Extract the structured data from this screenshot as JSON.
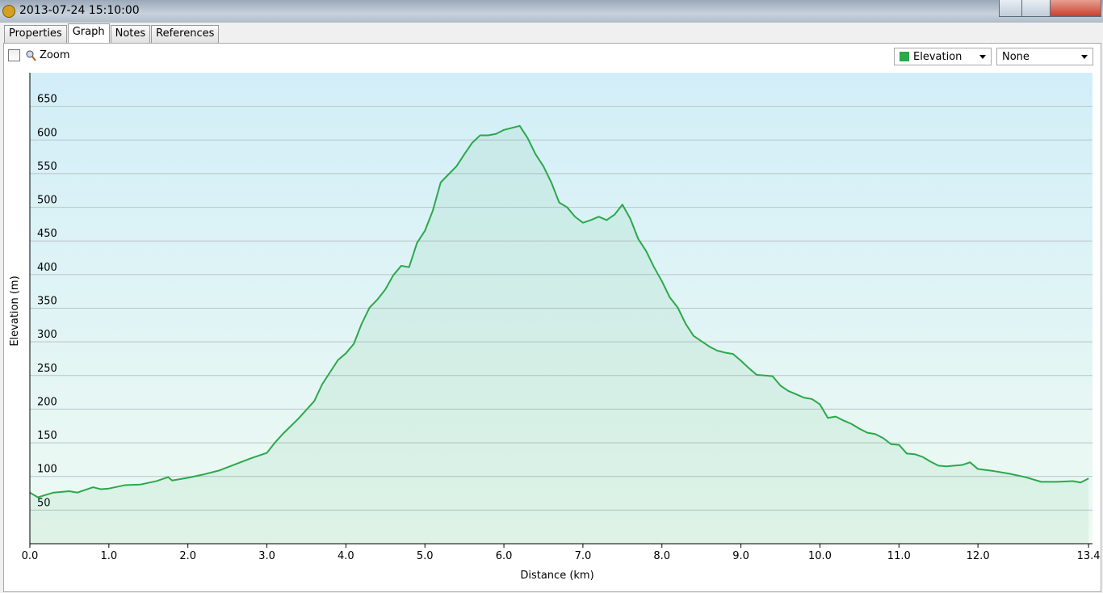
{
  "window": {
    "title": "2013-07-24 15:10:00"
  },
  "tabs": [
    "Properties",
    "Graph",
    "Notes",
    "References"
  ],
  "toolbar": {
    "zoom": "Zoom",
    "x_select": "None"
  },
  "chart_data": {
    "type": "line",
    "x_label": "Distance (km)",
    "y_label": "Elevation (m)",
    "x": [
      0,
      0.1,
      0.3,
      0.5,
      0.6,
      0.8,
      0.9,
      1.0,
      1.2,
      1.4,
      1.6,
      1.75,
      1.8,
      2.0,
      2.2,
      2.4,
      2.6,
      2.8,
      3.0,
      3.1,
      3.2,
      3.4,
      3.6,
      3.7,
      3.8,
      3.9,
      4.0,
      4.1,
      4.2,
      4.3,
      4.4,
      4.5,
      4.6,
      4.7,
      4.8,
      4.9,
      5.0,
      5.1,
      5.2,
      5.3,
      5.4,
      5.5,
      5.6,
      5.7,
      5.8,
      5.9,
      6.0,
      6.1,
      6.2,
      6.3,
      6.4,
      6.5,
      6.6,
      6.7,
      6.8,
      6.9,
      7.0,
      7.1,
      7.2,
      7.3,
      7.4,
      7.5,
      7.6,
      7.7,
      7.8,
      7.9,
      8.0,
      8.1,
      8.2,
      8.3,
      8.4,
      8.5,
      8.6,
      8.7,
      8.8,
      8.9,
      9.0,
      9.1,
      9.2,
      9.3,
      9.4,
      9.5,
      9.6,
      9.7,
      9.8,
      9.9,
      10.0,
      10.1,
      10.2,
      10.3,
      10.4,
      10.5,
      10.6,
      10.7,
      10.8,
      10.9,
      11.0,
      11.1,
      11.2,
      11.3,
      11.4,
      11.5,
      11.6,
      11.7,
      11.8,
      11.9,
      12.0,
      12.2,
      12.4,
      12.6,
      12.8,
      13.0,
      13.2,
      13.3,
      13.4
    ],
    "series": [
      {
        "name": "Elevation",
        "color": "#2ba84a",
        "values": [
          76,
          69,
          76,
          78,
          76,
          84,
          81,
          82,
          87,
          88,
          93,
          99,
          94,
          98,
          103,
          109,
          118,
          127,
          135,
          150,
          163,
          186,
          212,
          237,
          255,
          273,
          283,
          297,
          327,
          351,
          363,
          378,
          399,
          413,
          411,
          447,
          465,
          495,
          537,
          549,
          561,
          579,
          596,
          607,
          607,
          609,
          615,
          618,
          621,
          603,
          579,
          561,
          537,
          507,
          500,
          486,
          477,
          481,
          486,
          481,
          489,
          504,
          483,
          453,
          435,
          411,
          390,
          366,
          351,
          327,
          309,
          301,
          293,
          287,
          284,
          282,
          272,
          261,
          251,
          250,
          249,
          235,
          227,
          222,
          217,
          215,
          207,
          187,
          189,
          183,
          178,
          171,
          165,
          163,
          157,
          148,
          147,
          134,
          133,
          129,
          122,
          116,
          115,
          116,
          117,
          121,
          111,
          108,
          104,
          99,
          92,
          92,
          93,
          91,
          97
        ]
      }
    ],
    "xlim": [
      0,
      13.45
    ],
    "ylim": [
      0,
      700
    ],
    "xticks": [
      {
        "value": 0,
        "label": "0.0"
      },
      {
        "value": 1,
        "label": "1.0"
      },
      {
        "value": 2,
        "label": "2.0"
      },
      {
        "value": 3,
        "label": "3.0"
      },
      {
        "value": 4,
        "label": "4.0"
      },
      {
        "value": 5,
        "label": "5.0"
      },
      {
        "value": 6,
        "label": "6.0"
      },
      {
        "value": 7,
        "label": "7.0"
      },
      {
        "value": 8,
        "label": "8.0"
      },
      {
        "value": 9,
        "label": "9.0"
      },
      {
        "value": 10,
        "label": "10.0"
      },
      {
        "value": 11,
        "label": "11.0"
      },
      {
        "value": 12,
        "label": "12.0"
      },
      {
        "value": 13.4,
        "label": "13.4"
      }
    ],
    "yticks": [
      50,
      100,
      150,
      200,
      250,
      300,
      350,
      400,
      450,
      500,
      550,
      600,
      650
    ],
    "grid": true
  }
}
